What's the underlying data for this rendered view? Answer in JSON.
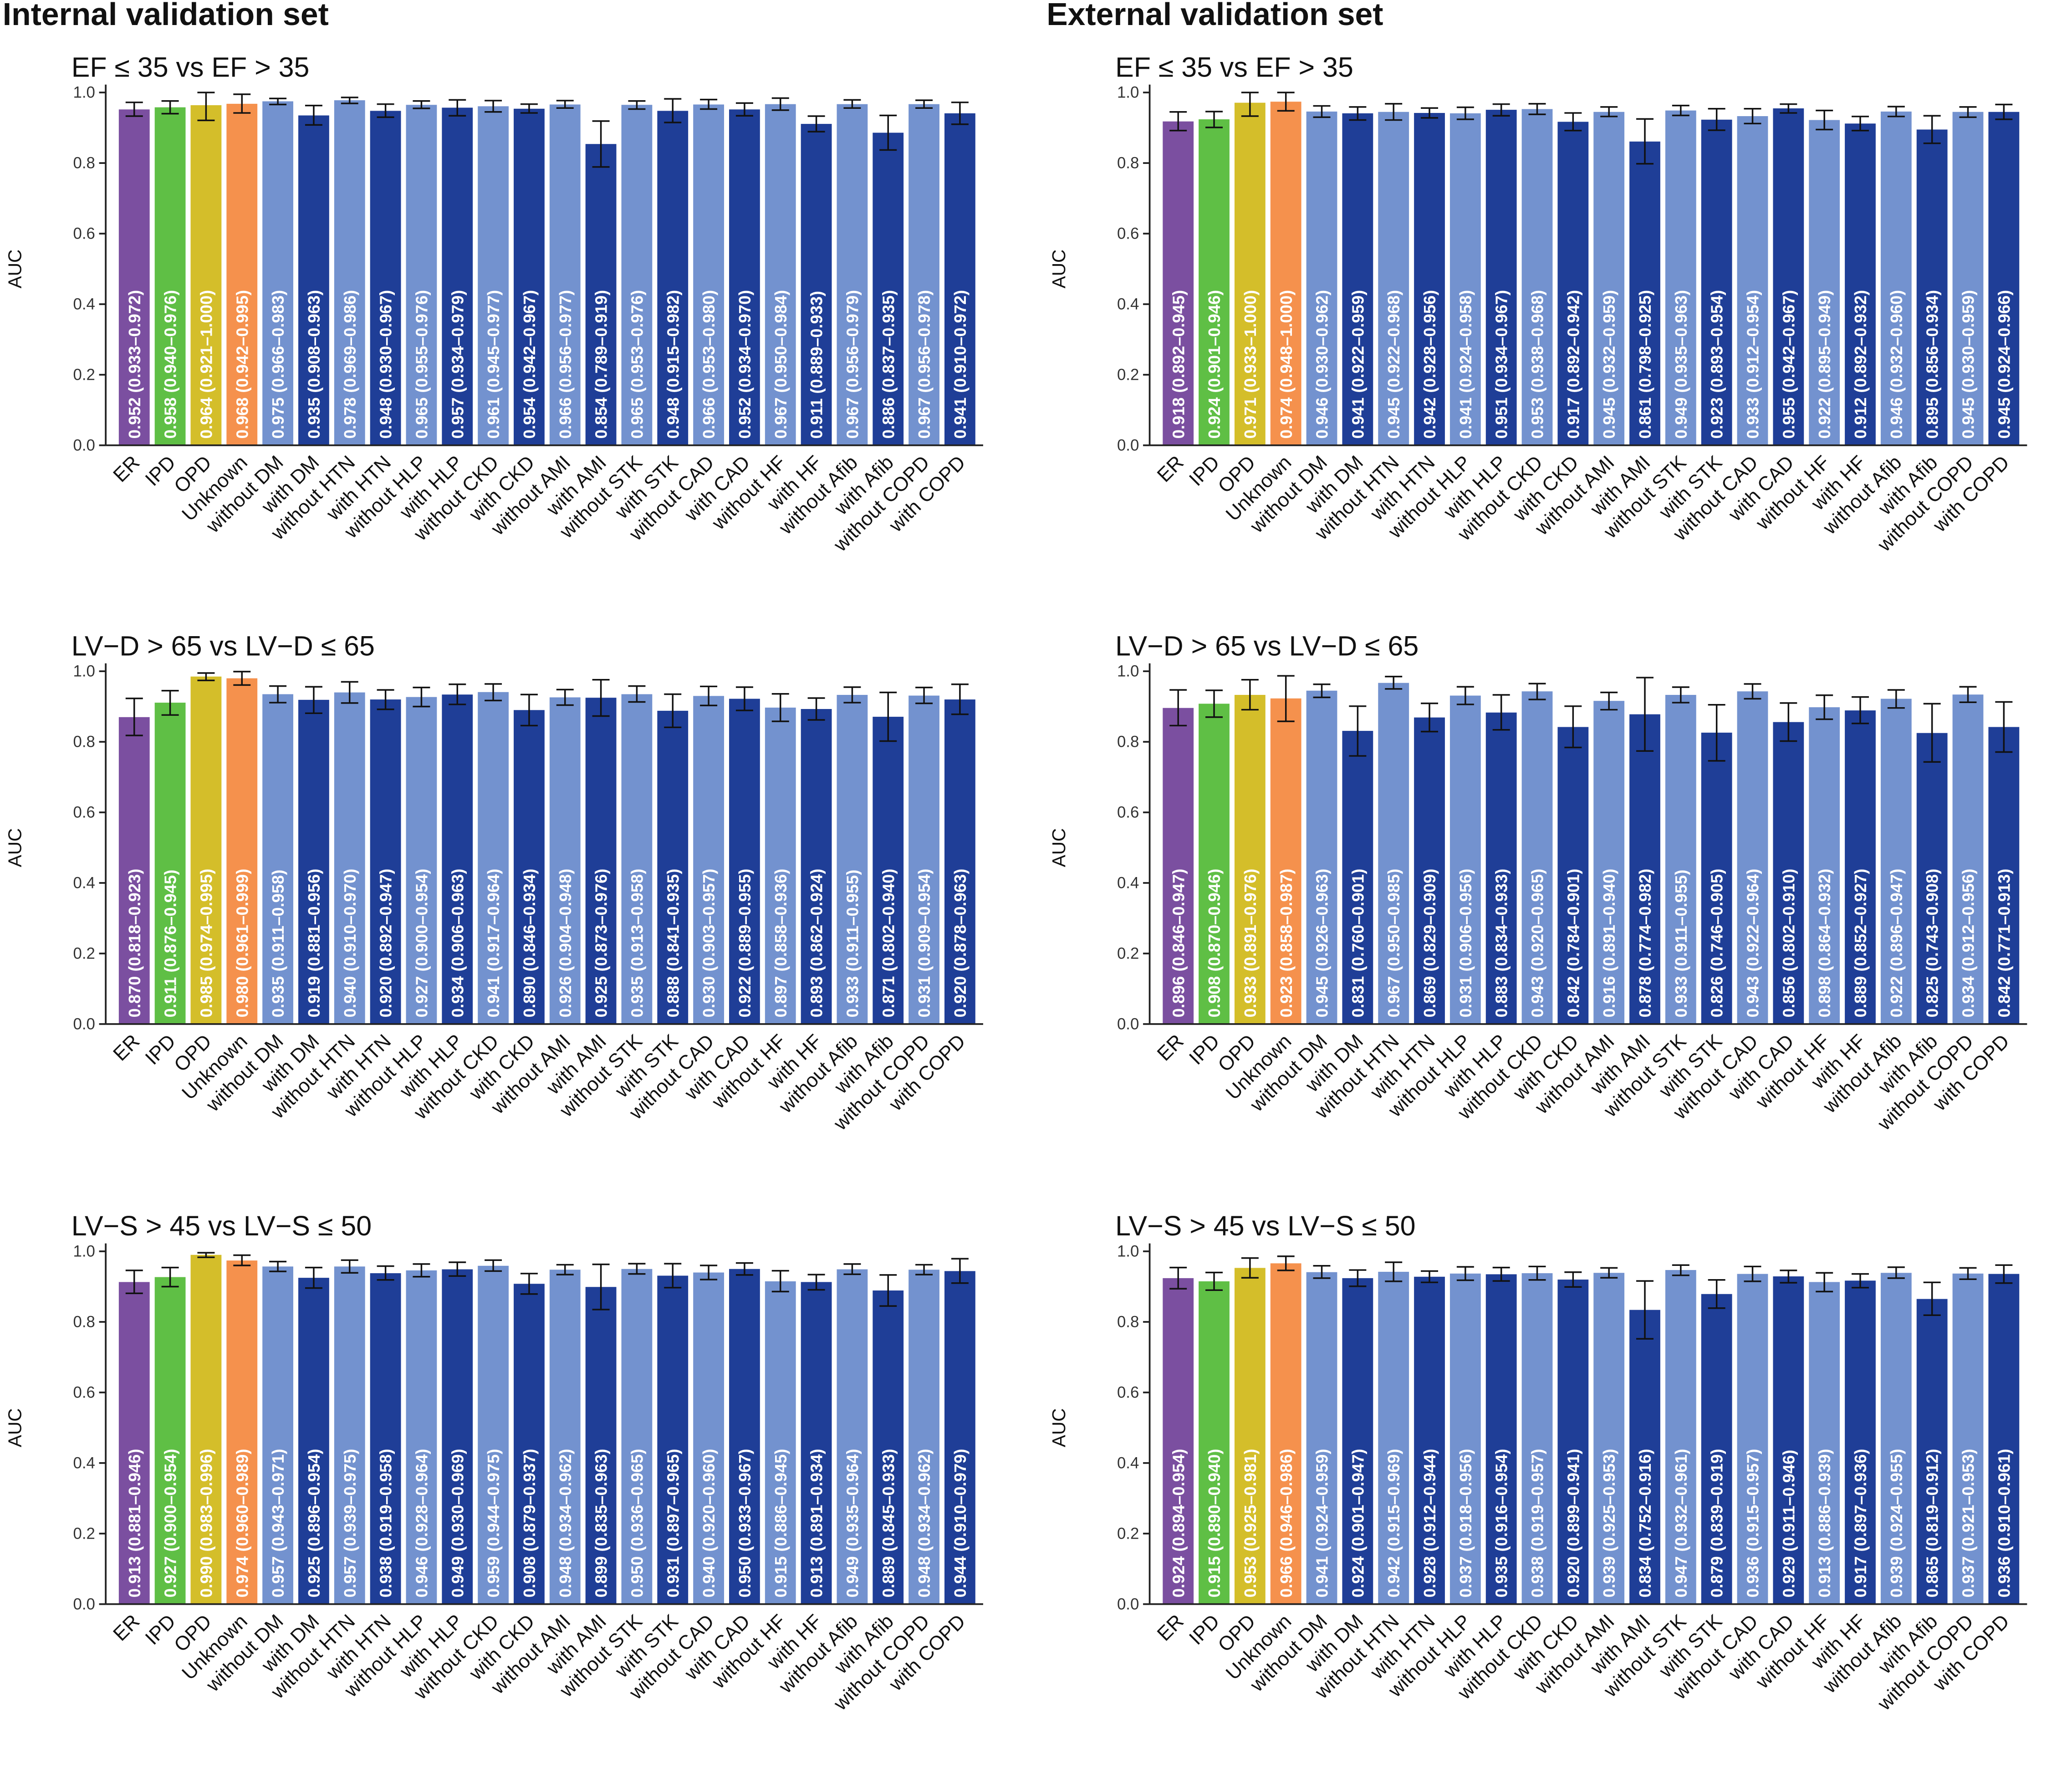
{
  "section_titles": {
    "internal": "Internal validation set",
    "external": "External validation set"
  },
  "colors": {
    "ER": "#7b4fa0",
    "IPD": "#5fbf45",
    "OPD": "#d4be2a",
    "Unknown": "#f5914d",
    "without": "#7392cf",
    "with": "#1f3e97"
  },
  "chart_data": [
    {
      "type": "bar",
      "panel": "internal-ef",
      "title": "EF ≤ 35 vs EF > 35",
      "ylabel": "AUC",
      "ylim": [
        0,
        1.0
      ],
      "yticks": [
        "0.0",
        "0.2",
        "0.4",
        "0.6",
        "0.8",
        "1.0"
      ],
      "categories": [
        "ER",
        "IPD",
        "OPD",
        "Unknown",
        "without DM",
        "with DM",
        "without HTN",
        "with HTN",
        "without HLP",
        "with HLP",
        "without CKD",
        "with CKD",
        "without AMI",
        "with AMI",
        "without STK",
        "with STK",
        "without CAD",
        "with CAD",
        "without HF",
        "with HF",
        "without Afib",
        "with Afib",
        "without COPD",
        "with COPD"
      ],
      "values": [
        0.952,
        0.958,
        0.964,
        0.968,
        0.975,
        0.935,
        0.978,
        0.948,
        0.965,
        0.957,
        0.961,
        0.954,
        0.966,
        0.854,
        0.965,
        0.948,
        0.966,
        0.952,
        0.967,
        0.911,
        0.967,
        0.886,
        0.967,
        0.941
      ],
      "lower": [
        0.933,
        0.94,
        0.921,
        0.942,
        0.966,
        0.908,
        0.969,
        0.93,
        0.955,
        0.934,
        0.945,
        0.942,
        0.956,
        0.789,
        0.953,
        0.915,
        0.953,
        0.934,
        0.95,
        0.889,
        0.956,
        0.837,
        0.956,
        0.91
      ],
      "upper": [
        0.972,
        0.976,
        1.0,
        0.995,
        0.983,
        0.963,
        0.986,
        0.967,
        0.976,
        0.979,
        0.977,
        0.967,
        0.977,
        0.919,
        0.976,
        0.982,
        0.98,
        0.97,
        0.984,
        0.933,
        0.979,
        0.935,
        0.978,
        0.972
      ],
      "labels": [
        "0.952 (0.933–0.972)",
        "0.958 (0.940–0.976)",
        "0.964 (0.921–1.000)",
        "0.968 (0.942–0.995)",
        "0.975 (0.966–0.983)",
        "0.935 (0.908–0.963)",
        "0.978 (0.969–0.986)",
        "0.948 (0.930–0.967)",
        "0.965 (0.955–0.976)",
        "0.957 (0.934–0.979)",
        "0.961 (0.945–0.977)",
        "0.954 (0.942–0.967)",
        "0.966 (0.956–0.977)",
        "0.854 (0.789–0.919)",
        "0.965 (0.953–0.976)",
        "0.948 (0.915–0.982)",
        "0.966 (0.953–0.980)",
        "0.952 (0.934–0.970)",
        "0.967 (0.950–0.984)",
        "0.911 (0.889–0.933)",
        "0.967 (0.956–0.979)",
        "0.886 (0.837–0.935)",
        "0.967 (0.956–0.978)",
        "0.941 (0.910–0.972)"
      ]
    },
    {
      "type": "bar",
      "panel": "external-ef",
      "title": "EF ≤ 35 vs EF > 35",
      "ylabel": "AUC",
      "ylim": [
        0,
        1.0
      ],
      "yticks": [
        "0.0",
        "0.2",
        "0.4",
        "0.6",
        "0.8",
        "1.0"
      ],
      "categories": [
        "ER",
        "IPD",
        "OPD",
        "Unknown",
        "without DM",
        "with DM",
        "without HTN",
        "with HTN",
        "without HLP",
        "with HLP",
        "without CKD",
        "with CKD",
        "without AMI",
        "with AMI",
        "without STK",
        "with STK",
        "without CAD",
        "with CAD",
        "without HF",
        "with HF",
        "without Afib",
        "with Afib",
        "without COPD",
        "with COPD"
      ],
      "values": [
        0.918,
        0.924,
        0.971,
        0.974,
        0.946,
        0.941,
        0.945,
        0.942,
        0.941,
        0.951,
        0.953,
        0.917,
        0.945,
        0.861,
        0.949,
        0.923,
        0.933,
        0.955,
        0.922,
        0.912,
        0.946,
        0.895,
        0.945,
        0.945
      ],
      "lower": [
        0.892,
        0.901,
        0.933,
        0.948,
        0.93,
        0.922,
        0.922,
        0.928,
        0.924,
        0.934,
        0.938,
        0.892,
        0.932,
        0.798,
        0.935,
        0.893,
        0.912,
        0.942,
        0.895,
        0.892,
        0.932,
        0.856,
        0.93,
        0.924
      ],
      "upper": [
        0.945,
        0.946,
        1.0,
        1.0,
        0.962,
        0.959,
        0.968,
        0.956,
        0.958,
        0.967,
        0.968,
        0.942,
        0.959,
        0.925,
        0.963,
        0.954,
        0.954,
        0.967,
        0.949,
        0.932,
        0.96,
        0.934,
        0.959,
        0.966
      ],
      "labels": [
        "0.918 (0.892–0.945)",
        "0.924 (0.901–0.946)",
        "0.971 (0.933–1.000)",
        "0.974 (0.948–1.000)",
        "0.946 (0.930–0.962)",
        "0.941 (0.922–0.959)",
        "0.945 (0.922–0.968)",
        "0.942 (0.928–0.956)",
        "0.941 (0.924–0.958)",
        "0.951 (0.934–0.967)",
        "0.953 (0.938–0.968)",
        "0.917 (0.892–0.942)",
        "0.945 (0.932–0.959)",
        "0.861 (0.798–0.925)",
        "0.949 (0.935–0.963)",
        "0.923 (0.893–0.954)",
        "0.933 (0.912–0.954)",
        "0.955 (0.942–0.967)",
        "0.922 (0.895–0.949)",
        "0.912 (0.892–0.932)",
        "0.946 (0.932–0.960)",
        "0.895 (0.856–0.934)",
        "0.945 (0.930–0.959)",
        "0.945 (0.924–0.966)"
      ]
    },
    {
      "type": "bar",
      "panel": "internal-lvd",
      "title": "LV−D > 65 vs LV−D ≤ 65",
      "ylabel": "AUC",
      "ylim": [
        0,
        1.0
      ],
      "yticks": [
        "0.0",
        "0.2",
        "0.4",
        "0.6",
        "0.8",
        "1.0"
      ],
      "categories": [
        "ER",
        "IPD",
        "OPD",
        "Unknown",
        "without DM",
        "with DM",
        "without HTN",
        "with HTN",
        "without HLP",
        "with HLP",
        "without CKD",
        "with CKD",
        "without AMI",
        "with AMI",
        "without STK",
        "with STK",
        "without CAD",
        "with CAD",
        "without HF",
        "with HF",
        "without Afib",
        "with Afib",
        "without COPD",
        "with COPD"
      ],
      "values": [
        0.87,
        0.911,
        0.985,
        0.98,
        0.935,
        0.919,
        0.94,
        0.92,
        0.927,
        0.934,
        0.941,
        0.89,
        0.926,
        0.925,
        0.935,
        0.888,
        0.93,
        0.922,
        0.897,
        0.893,
        0.933,
        0.871,
        0.931,
        0.92
      ],
      "lower": [
        0.818,
        0.876,
        0.974,
        0.961,
        0.911,
        0.881,
        0.91,
        0.892,
        0.9,
        0.906,
        0.917,
        0.846,
        0.904,
        0.873,
        0.913,
        0.841,
        0.903,
        0.889,
        0.858,
        0.862,
        0.911,
        0.802,
        0.909,
        0.878
      ],
      "upper": [
        0.923,
        0.945,
        0.995,
        0.999,
        0.958,
        0.956,
        0.97,
        0.947,
        0.954,
        0.963,
        0.964,
        0.934,
        0.948,
        0.976,
        0.958,
        0.935,
        0.957,
        0.955,
        0.936,
        0.924,
        0.955,
        0.94,
        0.954,
        0.963
      ],
      "labels": [
        "0.870 (0.818–0.923)",
        "0.911 (0.876–0.945)",
        "0.985 (0.974–0.995)",
        "0.980 (0.961–0.999)",
        "0.935 (0.911–0.958)",
        "0.919 (0.881–0.956)",
        "0.940 (0.910–0.970)",
        "0.920 (0.892–0.947)",
        "0.927 (0.900–0.954)",
        "0.934 (0.906–0.963)",
        "0.941 (0.917–0.964)",
        "0.890 (0.846–0.934)",
        "0.926 (0.904–0.948)",
        "0.925 (0.873–0.976)",
        "0.935 (0.913–0.958)",
        "0.888 (0.841–0.935)",
        "0.930 (0.903–0.957)",
        "0.922 (0.889–0.955)",
        "0.897 (0.858–0.936)",
        "0.893 (0.862–0.924)",
        "0.933 (0.911–0.955)",
        "0.871 (0.802–0.940)",
        "0.931 (0.909–0.954)",
        "0.920 (0.878–0.963)"
      ]
    },
    {
      "type": "bar",
      "panel": "external-lvd",
      "title": "LV−D > 65 vs LV−D ≤ 65",
      "ylabel": "AUC",
      "ylim": [
        0,
        1.0
      ],
      "yticks": [
        "0.0",
        "0.2",
        "0.4",
        "0.6",
        "0.8",
        "1.0"
      ],
      "categories": [
        "ER",
        "IPD",
        "OPD",
        "Unknown",
        "without DM",
        "with DM",
        "without HTN",
        "with HTN",
        "without HLP",
        "with HLP",
        "without CKD",
        "with CKD",
        "without AMI",
        "with AMI",
        "without STK",
        "with STK",
        "without CAD",
        "with CAD",
        "without HF",
        "with HF",
        "without Afib",
        "with Afib",
        "without COPD",
        "with COPD"
      ],
      "values": [
        0.896,
        0.908,
        0.933,
        0.923,
        0.945,
        0.831,
        0.967,
        0.869,
        0.931,
        0.883,
        0.943,
        0.842,
        0.916,
        0.878,
        0.933,
        0.826,
        0.943,
        0.856,
        0.898,
        0.889,
        0.922,
        0.825,
        0.934,
        0.842
      ],
      "lower": [
        0.846,
        0.87,
        0.891,
        0.858,
        0.926,
        0.76,
        0.95,
        0.829,
        0.906,
        0.834,
        0.92,
        0.784,
        0.891,
        0.774,
        0.911,
        0.746,
        0.922,
        0.802,
        0.864,
        0.852,
        0.896,
        0.743,
        0.912,
        0.771
      ],
      "upper": [
        0.947,
        0.946,
        0.976,
        0.987,
        0.963,
        0.901,
        0.985,
        0.909,
        0.956,
        0.933,
        0.965,
        0.901,
        0.94,
        0.982,
        0.955,
        0.905,
        0.964,
        0.91,
        0.932,
        0.927,
        0.947,
        0.908,
        0.956,
        0.913
      ],
      "labels": [
        "0.896 (0.846–0.947)",
        "0.908 (0.870–0.946)",
        "0.933 (0.891–0.976)",
        "0.923 (0.858–0.987)",
        "0.945 (0.926–0.963)",
        "0.831 (0.760–0.901)",
        "0.967 (0.950–0.985)",
        "0.869 (0.829–0.909)",
        "0.931 (0.906–0.956)",
        "0.883 (0.834–0.933)",
        "0.943 (0.920–0.965)",
        "0.842 (0.784–0.901)",
        "0.916 (0.891–0.940)",
        "0.878 (0.774–0.982)",
        "0.933 (0.911–0.955)",
        "0.826 (0.746–0.905)",
        "0.943 (0.922–0.964)",
        "0.856 (0.802–0.910)",
        "0.898 (0.864–0.932)",
        "0.889 (0.852–0.927)",
        "0.922 (0.896–0.947)",
        "0.825 (0.743–0.908)",
        "0.934 (0.912–0.956)",
        "0.842 (0.771–0.913)"
      ]
    },
    {
      "type": "bar",
      "panel": "internal-lvs",
      "title": "LV−S > 45 vs LV−S ≤ 50",
      "ylabel": "AUC",
      "ylim": [
        0,
        1.0
      ],
      "yticks": [
        "0.0",
        "0.2",
        "0.4",
        "0.6",
        "0.8",
        "1.0"
      ],
      "categories": [
        "ER",
        "IPD",
        "OPD",
        "Unknown",
        "without DM",
        "with DM",
        "without HTN",
        "with HTN",
        "without HLP",
        "with HLP",
        "without CKD",
        "with CKD",
        "without AMI",
        "with AMI",
        "without STK",
        "with STK",
        "without CAD",
        "with CAD",
        "without HF",
        "with HF",
        "without Afib",
        "with Afib",
        "without COPD",
        "with COPD"
      ],
      "values": [
        0.913,
        0.927,
        0.99,
        0.974,
        0.957,
        0.925,
        0.957,
        0.938,
        0.946,
        0.949,
        0.959,
        0.908,
        0.948,
        0.899,
        0.95,
        0.931,
        0.94,
        0.95,
        0.915,
        0.913,
        0.949,
        0.889,
        0.948,
        0.944
      ],
      "lower": [
        0.881,
        0.9,
        0.983,
        0.96,
        0.943,
        0.896,
        0.939,
        0.919,
        0.928,
        0.93,
        0.944,
        0.879,
        0.934,
        0.835,
        0.936,
        0.897,
        0.92,
        0.933,
        0.886,
        0.891,
        0.935,
        0.845,
        0.934,
        0.91
      ],
      "upper": [
        0.946,
        0.954,
        0.996,
        0.989,
        0.971,
        0.954,
        0.975,
        0.958,
        0.964,
        0.969,
        0.975,
        0.937,
        0.962,
        0.963,
        0.965,
        0.965,
        0.96,
        0.967,
        0.945,
        0.934,
        0.964,
        0.933,
        0.962,
        0.979
      ],
      "labels": [
        "0.913 (0.881–0.946)",
        "0.927 (0.900–0.954)",
        "0.990 (0.983–0.996)",
        "0.974 (0.960–0.989)",
        "0.957 (0.943–0.971)",
        "0.925 (0.896–0.954)",
        "0.957 (0.939–0.975)",
        "0.938 (0.919–0.958)",
        "0.946 (0.928–0.964)",
        "0.949 (0.930–0.969)",
        "0.959 (0.944–0.975)",
        "0.908 (0.879–0.937)",
        "0.948 (0.934–0.962)",
        "0.899 (0.835–0.963)",
        "0.950 (0.936–0.965)",
        "0.931 (0.897–0.965)",
        "0.940 (0.920–0.960)",
        "0.950 (0.933–0.967)",
        "0.915 (0.886–0.945)",
        "0.913 (0.891–0.934)",
        "0.949 (0.935–0.964)",
        "0.889 (0.845–0.933)",
        "0.948 (0.934–0.962)",
        "0.944 (0.910–0.979)"
      ]
    },
    {
      "type": "bar",
      "panel": "external-lvs",
      "title": "LV−S > 45 vs LV−S ≤ 50",
      "ylabel": "AUC",
      "ylim": [
        0,
        1.0
      ],
      "yticks": [
        "0.0",
        "0.2",
        "0.4",
        "0.6",
        "0.8",
        "1.0"
      ],
      "categories": [
        "ER",
        "IPD",
        "OPD",
        "Unknown",
        "without DM",
        "with DM",
        "without HTN",
        "with HTN",
        "without HLP",
        "with HLP",
        "without CKD",
        "with CKD",
        "without AMI",
        "with AMI",
        "without STK",
        "with STK",
        "without CAD",
        "with CAD",
        "without HF",
        "with HF",
        "without Afib",
        "with Afib",
        "without COPD",
        "with COPD"
      ],
      "values": [
        0.924,
        0.915,
        0.953,
        0.966,
        0.941,
        0.924,
        0.942,
        0.928,
        0.937,
        0.935,
        0.938,
        0.92,
        0.939,
        0.834,
        0.947,
        0.879,
        0.936,
        0.929,
        0.913,
        0.917,
        0.939,
        0.865,
        0.937,
        0.936
      ],
      "lower": [
        0.894,
        0.89,
        0.925,
        0.946,
        0.924,
        0.901,
        0.915,
        0.912,
        0.918,
        0.916,
        0.919,
        0.899,
        0.925,
        0.752,
        0.932,
        0.839,
        0.915,
        0.911,
        0.886,
        0.897,
        0.924,
        0.819,
        0.921,
        0.91
      ],
      "upper": [
        0.954,
        0.94,
        0.981,
        0.986,
        0.959,
        0.947,
        0.969,
        0.944,
        0.956,
        0.954,
        0.957,
        0.941,
        0.953,
        0.916,
        0.961,
        0.919,
        0.957,
        0.946,
        0.939,
        0.936,
        0.955,
        0.912,
        0.953,
        0.961
      ],
      "labels": [
        "0.924 (0.894–0.954)",
        "0.915 (0.890–0.940)",
        "0.953 (0.925–0.981)",
        "0.966 (0.946–0.986)",
        "0.941 (0.924–0.959)",
        "0.924 (0.901–0.947)",
        "0.942 (0.915–0.969)",
        "0.928 (0.912–0.944)",
        "0.937 (0.918–0.956)",
        "0.935 (0.916–0.954)",
        "0.938 (0.919–0.957)",
        "0.920 (0.899–0.941)",
        "0.939 (0.925–0.953)",
        "0.834 (0.752–0.916)",
        "0.947 (0.932–0.961)",
        "0.879 (0.839–0.919)",
        "0.936 (0.915–0.957)",
        "0.929 (0.911–0.946)",
        "0.913 (0.886–0.939)",
        "0.917 (0.897–0.936)",
        "0.939 (0.924–0.955)",
        "0.865 (0.819–0.912)",
        "0.937 (0.921–0.953)",
        "0.936 (0.910–0.961)"
      ]
    }
  ]
}
